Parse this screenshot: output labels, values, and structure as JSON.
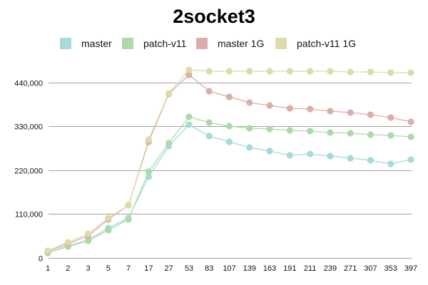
{
  "chart_data": {
    "type": "line",
    "title": "2socket3",
    "xlabel": "",
    "ylabel": "",
    "categories": [
      "1",
      "2",
      "3",
      "5",
      "7",
      "17",
      "27",
      "53",
      "83",
      "107",
      "139",
      "163",
      "191",
      "211",
      "239",
      "271",
      "307",
      "353",
      "397"
    ],
    "yticks": [
      "0",
      "110,000",
      "220,000",
      "330,000",
      "440,000"
    ],
    "ylim": [
      0,
      470000
    ],
    "grid": true,
    "legend_position": "top",
    "series": [
      {
        "name": "master",
        "color": "#a6dadc",
        "values": [
          12500,
          30400,
          44600,
          75000,
          100000,
          203600,
          280400,
          333900,
          305400,
          291100,
          276800,
          267900,
          257200,
          260700,
          255400,
          250000,
          244700,
          235700,
          246400
        ]
      },
      {
        "name": "patch-v11",
        "color": "#acdca6",
        "values": [
          12500,
          28600,
          42900,
          69600,
          96400,
          216100,
          287500,
          353600,
          339300,
          330400,
          325000,
          323200,
          319600,
          317900,
          314300,
          312500,
          308900,
          307100,
          303600
        ]
      },
      {
        "name": "master 1G",
        "color": "#dcaeaa",
        "values": [
          16100,
          35700,
          55400,
          96400,
          132100,
          291100,
          410700,
          458900,
          417900,
          403600,
          389300,
          382100,
          375000,
          373200,
          367900,
          364300,
          358900,
          351800,
          341100
        ]
      },
      {
        "name": "patch-v11 1G",
        "color": "#dcdcaa",
        "values": [
          17900,
          39300,
          60700,
          100000,
          132100,
          296400,
          412500,
          471400,
          467900,
          467900,
          467900,
          467900,
          467900,
          467900,
          467900,
          466100,
          466100,
          464300,
          464300
        ]
      }
    ]
  }
}
